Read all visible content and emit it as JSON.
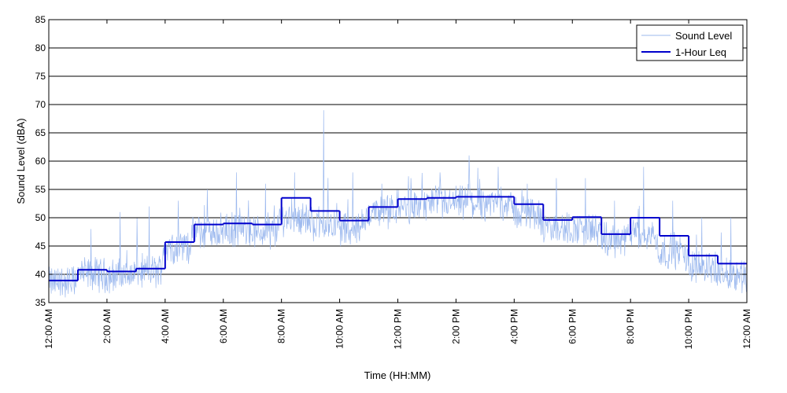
{
  "chart_data": {
    "type": "line",
    "title": "",
    "xlabel": "Time (HH:MM)",
    "ylabel": "Sound Level (dBA)",
    "ylim": [
      35,
      85
    ],
    "yticks": [
      35,
      40,
      45,
      50,
      55,
      60,
      65,
      70,
      75,
      80,
      85
    ],
    "xlim_hours": [
      0,
      24
    ],
    "xticks": [
      {
        "hour": 0,
        "label": "12:00 AM"
      },
      {
        "hour": 2,
        "label": "2:00 AM"
      },
      {
        "hour": 4,
        "label": "4:00 AM"
      },
      {
        "hour": 6,
        "label": "6:00 AM"
      },
      {
        "hour": 8,
        "label": "8:00 AM"
      },
      {
        "hour": 10,
        "label": "10:00 AM"
      },
      {
        "hour": 12,
        "label": "12:00 PM"
      },
      {
        "hour": 14,
        "label": "2:00 PM"
      },
      {
        "hour": 16,
        "label": "4:00 PM"
      },
      {
        "hour": 18,
        "label": "6:00 PM"
      },
      {
        "hour": 20,
        "label": "8:00 PM"
      },
      {
        "hour": 22,
        "label": "10:00 PM"
      },
      {
        "hour": 24,
        "label": "12:00 AM"
      }
    ],
    "grid": "horizontal",
    "legend_position": "top-right",
    "series": [
      {
        "name": "Sound Level",
        "style": "thin-line",
        "color": "#9bb8ee",
        "hourly_baseline": [
          38.5,
          40.0,
          39.8,
          40.5,
          45.0,
          47.5,
          47.8,
          47.5,
          50.0,
          49.0,
          48.0,
          51.0,
          52.0,
          52.5,
          52.5,
          52.5,
          51.0,
          48.0,
          48.0,
          46.0,
          47.0,
          44.0,
          41.5,
          40.0
        ],
        "hourly_peak": [
          41,
          48,
          51,
          52,
          53,
          55,
          58,
          56,
          58,
          69,
          58,
          56,
          57,
          58,
          61,
          59,
          56,
          57,
          57,
          53,
          59,
          53,
          50,
          50
        ]
      },
      {
        "name": "1-Hour Leq",
        "style": "step",
        "color": "#0000cc",
        "hours": [
          0,
          1,
          2,
          3,
          4,
          5,
          6,
          7,
          8,
          9,
          10,
          11,
          12,
          13,
          14,
          15,
          16,
          17,
          18,
          19,
          20,
          21,
          22,
          23
        ],
        "values": [
          38.9,
          40.8,
          40.5,
          41.0,
          45.7,
          48.8,
          49.0,
          48.8,
          53.5,
          51.2,
          49.5,
          51.9,
          53.3,
          53.5,
          53.7,
          53.7,
          52.4,
          49.6,
          50.1,
          47.1,
          50.0,
          46.8,
          43.3,
          41.9
        ]
      }
    ]
  },
  "colors": {
    "sound_level": "#9bb8ee",
    "leq": "#0000cc",
    "grid": "#000000",
    "frame": "#000000"
  }
}
